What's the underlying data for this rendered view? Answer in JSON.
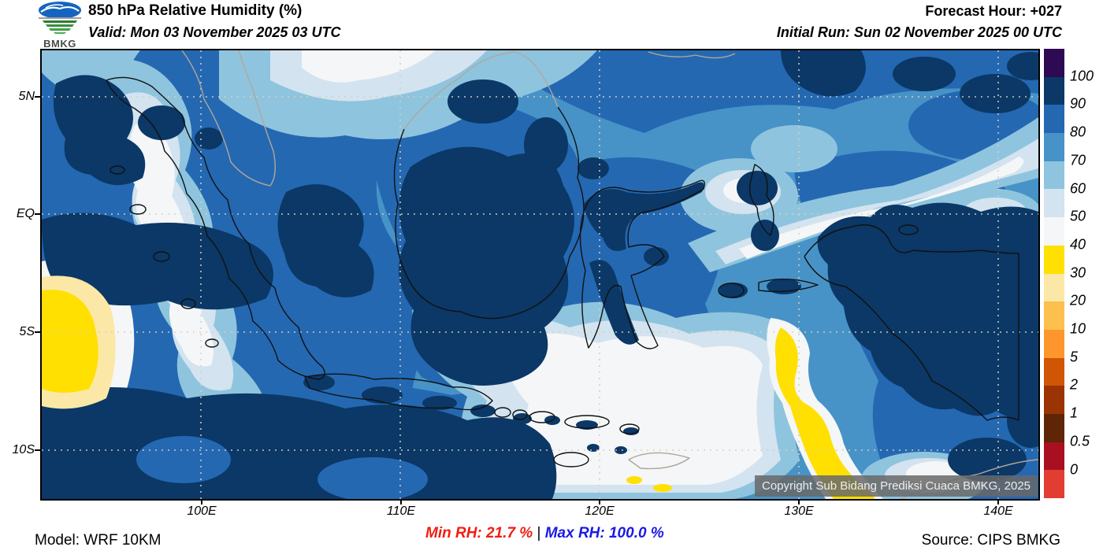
{
  "header": {
    "logo_text": "BMKG",
    "title": "850 hPa Relative Humidity (%)",
    "valid": "Valid: Mon 03 November 2025 03 UTC",
    "forecast_hour": "Forecast Hour: +027",
    "initial_run": "Initial Run: Sun 02 November 2025 00 UTC"
  },
  "map": {
    "lat_labels": [
      "5N",
      "EQ",
      "5S",
      "10S"
    ],
    "lon_labels": [
      "100E",
      "110E",
      "120E",
      "130E",
      "140E"
    ],
    "copyright": "Copyright Sub Bidang Prediksi Cuaca BMKG, 2025"
  },
  "colorbar": {
    "tick_labels": [
      "100",
      "90",
      "80",
      "70",
      "60",
      "50",
      "40",
      "30",
      "20",
      "10",
      "5",
      "2",
      "1",
      "0.5",
      "0"
    ],
    "segment_colors_top_to_bottom": [
      "#2e0a54",
      "#0b3866",
      "#2468b2",
      "#4793c7",
      "#8fc4de",
      "#d3e3f0",
      "#f5f6f7",
      "#ffe000",
      "#fbe8a6",
      "#fdc04e",
      "#fd962c",
      "#d05504",
      "#9a3403",
      "#5f2507",
      "#a81022",
      "#e23d32"
    ]
  },
  "footer": {
    "model": "Model: WRF 10KM",
    "min_rh_label": "Min RH:",
    "min_rh_value": "21.7 %",
    "separator": "|",
    "max_rh_label": "Max RH:",
    "max_rh_value": "100.0 %",
    "source": "Source: CIPS BMKG",
    "min_color": "#f21d11",
    "max_color": "#1a1ae6"
  }
}
